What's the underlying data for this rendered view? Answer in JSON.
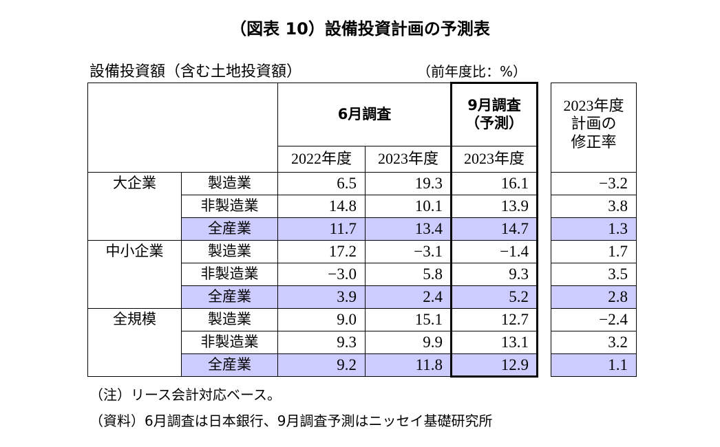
{
  "title": "（図表 10）設備投資計画の予測表",
  "subtitle": "設備投資額（含む土地投資額）",
  "unit": "（前年度比：%）",
  "table": {
    "headers": {
      "june": "6月調査",
      "sept": [
        "9月調査",
        "（予測）"
      ],
      "years": [
        "2022年度",
        "2023年度",
        "2023年度"
      ],
      "revision": [
        "2023年度",
        "計画の",
        "修正率"
      ]
    },
    "groups": [
      {
        "name": "大企業",
        "rows": [
          {
            "segment": "製造業",
            "values": [
              "6.5",
              "19.3",
              "16.1",
              "−3.2"
            ]
          },
          {
            "segment": "非製造業",
            "values": [
              "14.8",
              "10.1",
              "13.9",
              "3.8"
            ]
          },
          {
            "segment": "全産業",
            "values": [
              "11.7",
              "13.4",
              "14.7",
              "1.3"
            ]
          }
        ]
      },
      {
        "name": "中小企業",
        "rows": [
          {
            "segment": "製造業",
            "values": [
              "17.2",
              "−3.1",
              "−1.4",
              "1.7"
            ]
          },
          {
            "segment": "非製造業",
            "values": [
              "−3.0",
              "5.8",
              "9.3",
              "3.5"
            ]
          },
          {
            "segment": "全産業",
            "values": [
              "3.9",
              "2.4",
              "5.2",
              "2.8"
            ]
          }
        ]
      },
      {
        "name": "全規模",
        "rows": [
          {
            "segment": "製造業",
            "values": [
              "9.0",
              "15.1",
              "12.7",
              "−2.4"
            ]
          },
          {
            "segment": "非製造業",
            "values": [
              "9.3",
              "9.9",
              "13.1",
              "3.2"
            ]
          },
          {
            "segment": "全産業",
            "values": [
              "9.2",
              "11.8",
              "12.9",
              "1.1"
            ]
          }
        ]
      }
    ]
  },
  "notes": [
    "（注）リース会計対応ベース。",
    "（資料）6月調査は日本銀行、9月調査予測はニッセイ基礎研究所"
  ]
}
